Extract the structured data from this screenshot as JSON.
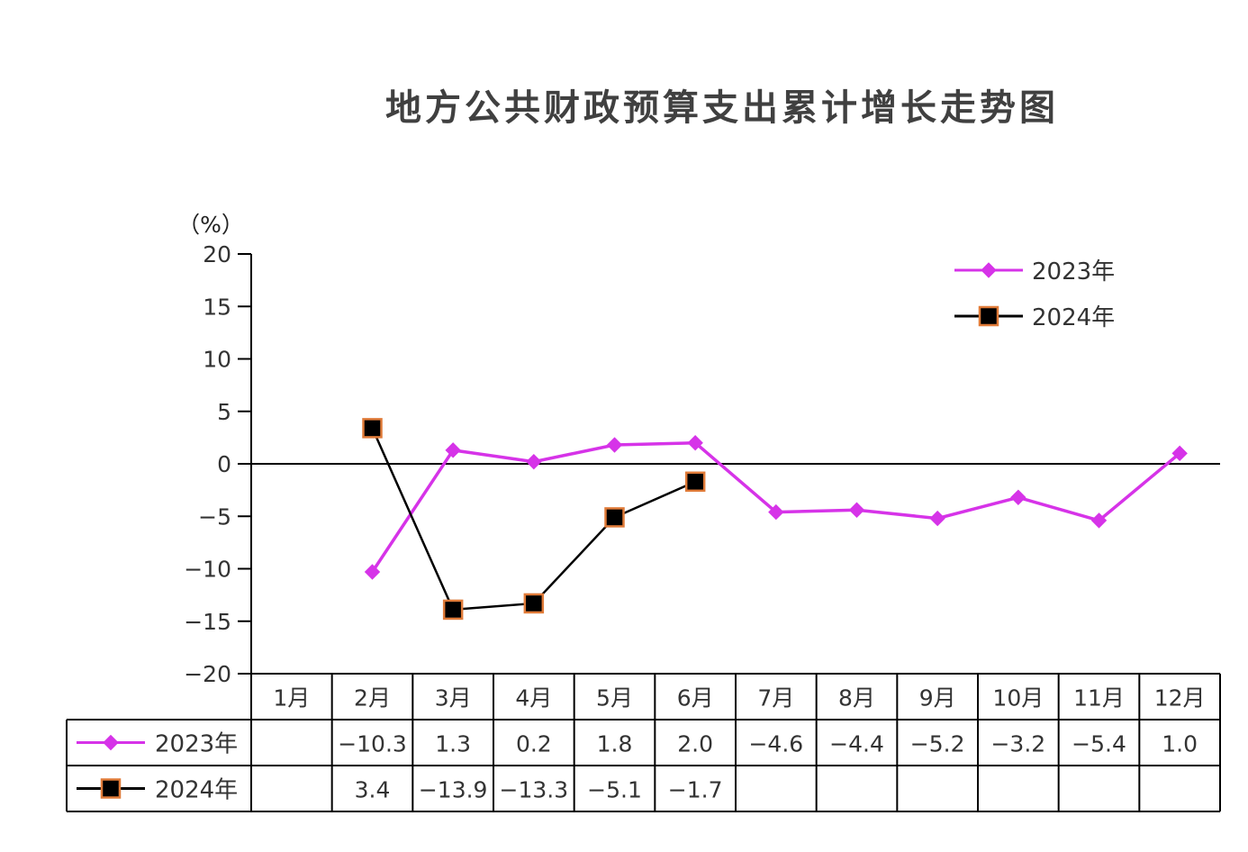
{
  "chart_data": {
    "type": "line",
    "title": "地方公共财政预算支出累计增长走势图",
    "unit_label": "（%）",
    "categories": [
      "1月",
      "2月",
      "3月",
      "4月",
      "5月",
      "6月",
      "7月",
      "8月",
      "9月",
      "10月",
      "11月",
      "12月"
    ],
    "yticks": [
      "20",
      "15",
      "10",
      "5",
      "0",
      "−5",
      "−10",
      "−15",
      "−20"
    ],
    "ylim": [
      -20,
      20
    ],
    "legend_position": "top-right",
    "series": [
      {
        "name": "2023年",
        "color": "#d633e8",
        "marker": "diamond",
        "values": [
          null,
          -10.3,
          1.3,
          0.2,
          1.8,
          2.0,
          -4.6,
          -4.4,
          -5.2,
          -3.2,
          -5.4,
          1.0
        ],
        "labels": [
          "",
          "−10.3",
          "1.3",
          "0.2",
          "1.8",
          "2.0",
          "−4.6",
          "−4.4",
          "−5.2",
          "−3.2",
          "−5.4",
          "1.0"
        ]
      },
      {
        "name": "2024年",
        "color": "#000000",
        "marker_fill": "#000000",
        "marker_stroke": "#e07b39",
        "marker": "square",
        "values": [
          null,
          3.4,
          -13.9,
          -13.3,
          -5.1,
          -1.7,
          null,
          null,
          null,
          null,
          null,
          null
        ],
        "labels": [
          "",
          "3.4",
          "−13.9",
          "−13.3",
          "−5.1",
          "−1.7",
          "",
          "",
          "",
          "",
          "",
          ""
        ]
      }
    ]
  }
}
